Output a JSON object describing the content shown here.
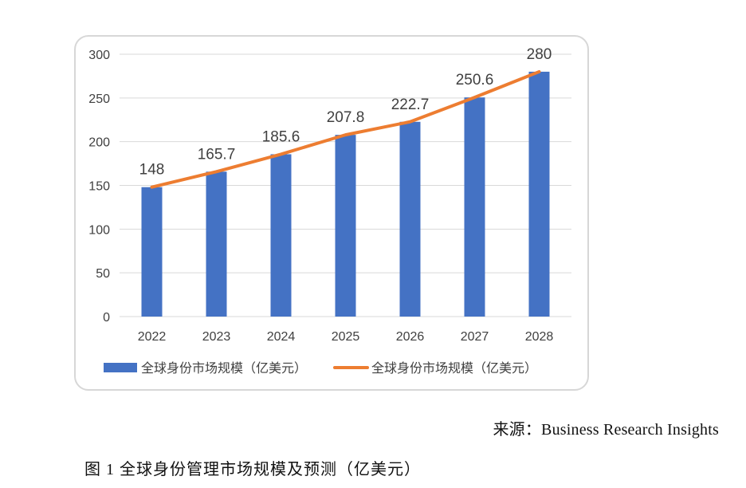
{
  "chart_data": {
    "type": "bar",
    "categories": [
      "2022",
      "2023",
      "2024",
      "2025",
      "2026",
      "2027",
      "2028"
    ],
    "series": [
      {
        "name": "全球身份市场规模（亿美元）",
        "type": "bar",
        "color": "#4472c4",
        "values": [
          148,
          165.7,
          185.6,
          207.8,
          222.7,
          250.6,
          280
        ]
      },
      {
        "name": "全球身份市场规模（亿美元）",
        "type": "line",
        "color": "#ed7d31",
        "values": [
          148,
          165.7,
          185.6,
          207.8,
          222.7,
          250.6,
          280
        ]
      }
    ],
    "data_labels": [
      "148",
      "165.7",
      "185.6",
      "207.8",
      "222.7",
      "250.6",
      "280"
    ],
    "yticks": [
      "0",
      "50",
      "100",
      "150",
      "200",
      "250",
      "300"
    ],
    "ylim": [
      0,
      300
    ],
    "grid": true,
    "legend_position": "bottom"
  },
  "source": "来源：Business Research Insights",
  "caption": "图 1  全球身份管理市场规模及预测（亿美元）"
}
